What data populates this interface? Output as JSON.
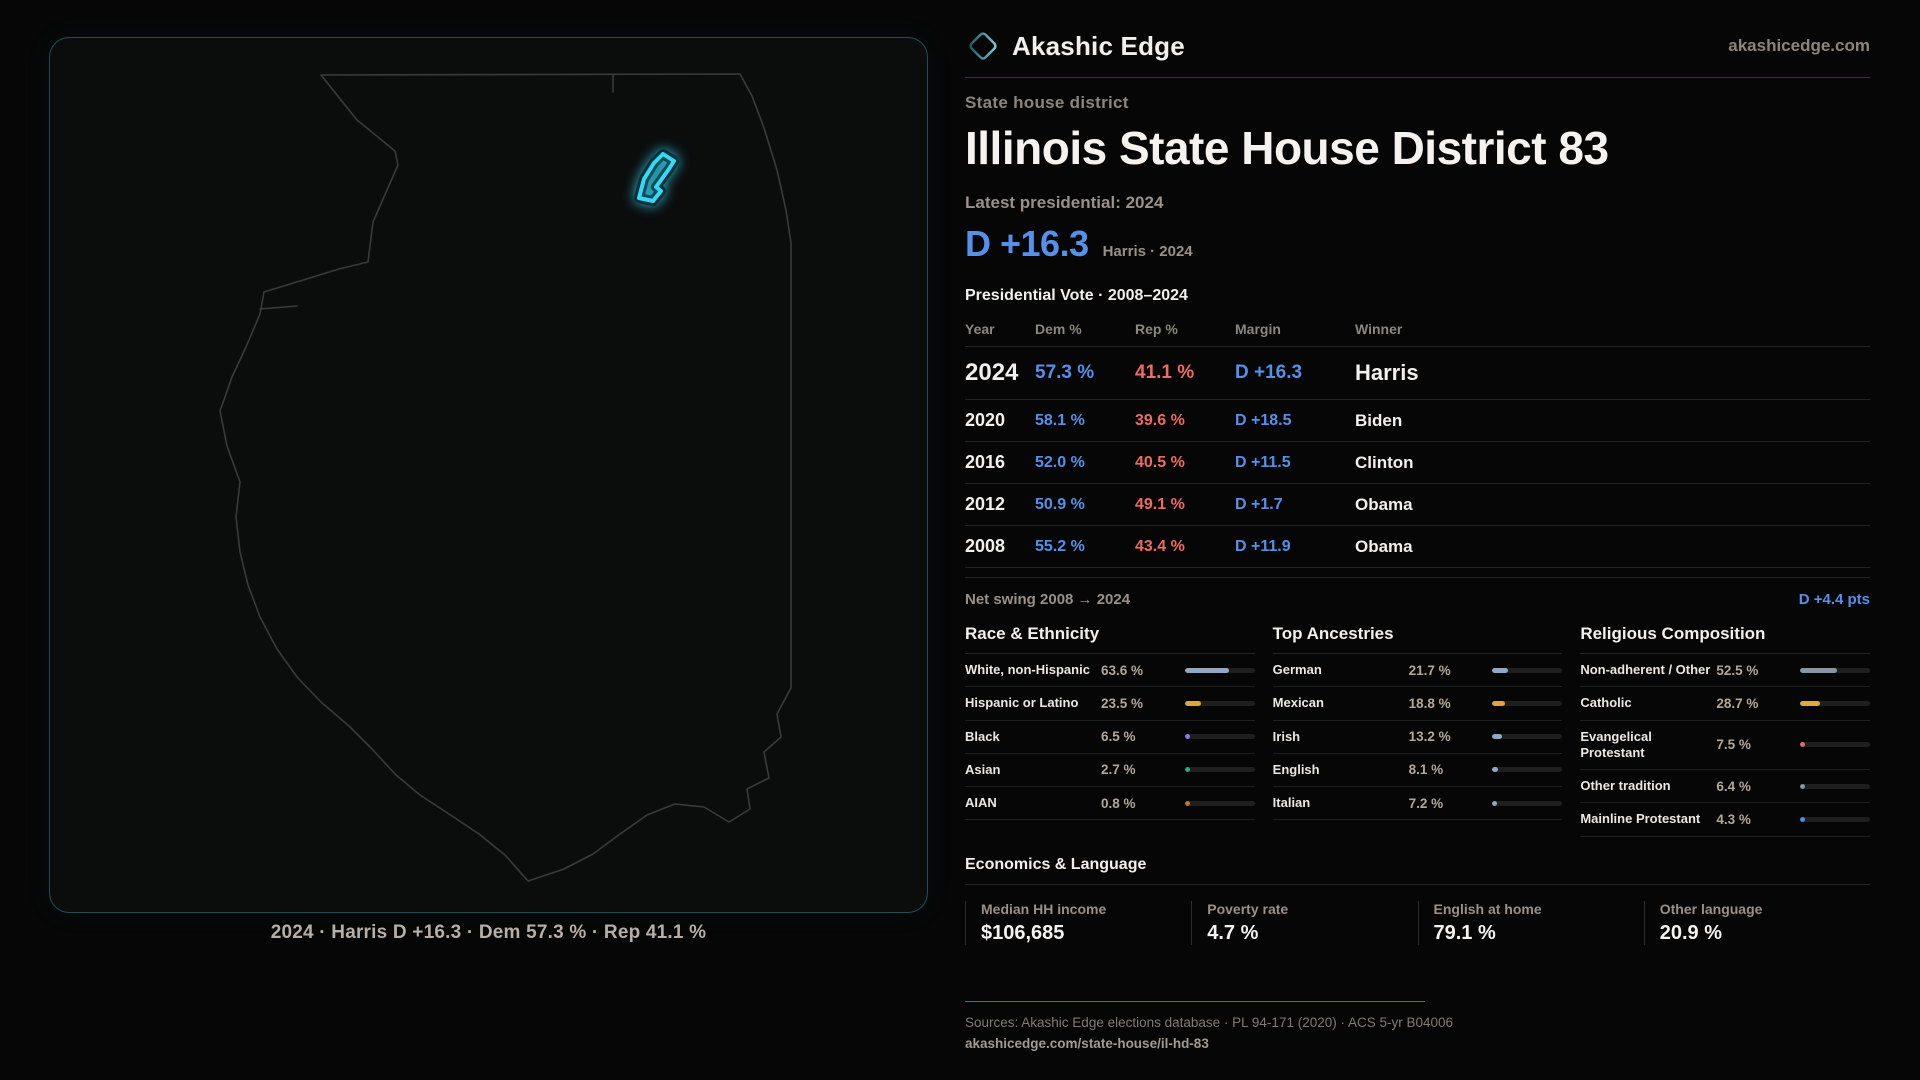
{
  "brand": {
    "name": "Akashic Edge",
    "site": "akashicedge.com"
  },
  "page": {
    "kicker": "State house district",
    "title": "Illinois State House District 83",
    "latest_label": "Latest presidential: 2024",
    "headline_margin": "D +16.3",
    "headline_sub": "Harris · 2024",
    "table_title": "Presidential Vote · 2008–2024"
  },
  "map": {
    "caption": "2024 · Harris D +16.3 · Dem 57.3 % · Rep 41.1 %",
    "state": "Illinois",
    "outline_color": "#3a3a3a",
    "district_color": "#35d8f5",
    "panel_border_color": "#3e9baf"
  },
  "pres_table": {
    "columns": [
      "Year",
      "Dem %",
      "Rep %",
      "Margin",
      "Winner"
    ],
    "rows": [
      {
        "year": "2024",
        "dem": "57.3 %",
        "rep": "41.1 %",
        "margin": "D +16.3",
        "winner": "Harris"
      },
      {
        "year": "2020",
        "dem": "58.1 %",
        "rep": "39.6 %",
        "margin": "D +18.5",
        "winner": "Biden"
      },
      {
        "year": "2016",
        "dem": "52.0 %",
        "rep": "40.5 %",
        "margin": "D +11.5",
        "winner": "Clinton"
      },
      {
        "year": "2012",
        "dem": "50.9 %",
        "rep": "49.1 %",
        "margin": "D +1.7",
        "winner": "Obama"
      },
      {
        "year": "2008",
        "dem": "55.2 %",
        "rep": "43.4 %",
        "margin": "D +11.9",
        "winner": "Obama"
      }
    ]
  },
  "net_swing": {
    "label": "Net swing 2008 → 2024",
    "value": "D +4.4 pts"
  },
  "panels": [
    {
      "title": "Race & Ethnicity",
      "rows": [
        {
          "label": "White, non-Hispanic",
          "value": "63.6 %",
          "pct": 63.6,
          "color": "#92a7c4"
        },
        {
          "label": "Hispanic or Latino",
          "value": "23.5 %",
          "pct": 23.5,
          "color": "#e3a43a"
        },
        {
          "label": "Black",
          "value": "6.5 %",
          "pct": 6.5,
          "color": "#8b7be8"
        },
        {
          "label": "Asian",
          "value": "2.7 %",
          "pct": 2.7,
          "color": "#2aa98a"
        },
        {
          "label": "AIAN",
          "value": "0.8 %",
          "pct": 0.8,
          "color": "#c0762e"
        }
      ]
    },
    {
      "title": "Top Ancestries",
      "rows": [
        {
          "label": "German",
          "value": "21.7 %",
          "pct": 21.7,
          "color": "#92a7c4"
        },
        {
          "label": "Mexican",
          "value": "18.8 %",
          "pct": 18.8,
          "color": "#e3a43a"
        },
        {
          "label": "Irish",
          "value": "13.2 %",
          "pct": 13.2,
          "color": "#92a7c4"
        },
        {
          "label": "English",
          "value": "8.1 %",
          "pct": 8.1,
          "color": "#92a7c4"
        },
        {
          "label": "Italian",
          "value": "7.2 %",
          "pct": 7.2,
          "color": "#92a7c4"
        }
      ]
    },
    {
      "title": "Religious Composition",
      "rows": [
        {
          "label": "Non-adherent / Other",
          "value": "52.5 %",
          "pct": 52.5,
          "color": "#8a94a6"
        },
        {
          "label": "Catholic",
          "value": "28.7 %",
          "pct": 28.7,
          "color": "#d9ae32"
        },
        {
          "label": "Evangelical Protestant",
          "value": "7.5 %",
          "pct": 7.5,
          "color": "#e06b6b"
        },
        {
          "label": "Other tradition",
          "value": "6.4 %",
          "pct": 6.4,
          "color": "#8a94a6"
        },
        {
          "label": "Mainline Protestant",
          "value": "4.3 %",
          "pct": 4.3,
          "color": "#4d8de8"
        }
      ]
    }
  ],
  "economics": {
    "title": "Economics & Language",
    "metrics": [
      {
        "label": "Median HH income",
        "value": "$106,685"
      },
      {
        "label": "Poverty rate",
        "value": "4.7 %"
      },
      {
        "label": "English at home",
        "value": "79.1 %"
      },
      {
        "label": "Other language",
        "value": "20.9 %"
      }
    ]
  },
  "footer": {
    "sources": "Sources: Akashic Edge elections database · PL 94-171 (2020) · ACS 5-yr B04006",
    "permalink": "akashicedge.com/state-house/il-hd-83"
  },
  "colors": {
    "dem_blue": "#5591ea",
    "rep_red": "#ee6a64",
    "district_cyan": "#35d8f5",
    "teal_rule": "#2e7f93",
    "background": "#060606"
  }
}
